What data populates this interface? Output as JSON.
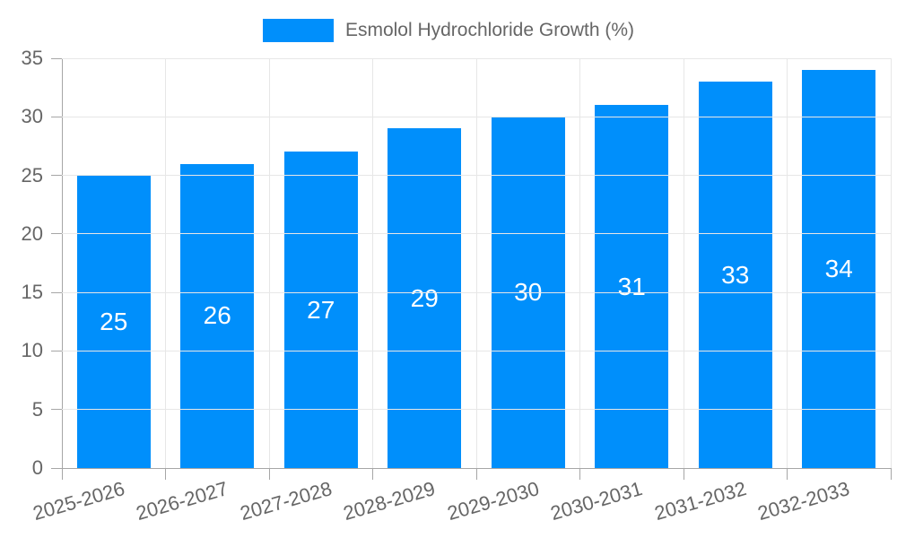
{
  "chart_data": {
    "type": "bar",
    "title": "",
    "legend_label": "Esmolol Hydrochloride Growth (%)",
    "legend_position": "top",
    "categories": [
      "2025-2026",
      "2026-2027",
      "2027-2028",
      "2028-2029",
      "2029-2030",
      "2030-2031",
      "2031-2032",
      "2032-2033"
    ],
    "values": [
      25,
      26,
      27,
      29,
      30,
      31,
      33,
      34
    ],
    "xlabel": "",
    "ylabel": "",
    "ylim": [
      0,
      35
    ],
    "yticks": [
      0,
      5,
      10,
      15,
      20,
      25,
      30,
      35
    ],
    "grid": "horizontal and vertical gridlines on",
    "x_label_rotation_deg": -16,
    "colors": {
      "bar": "#008FFB",
      "bar_value_text": "#ffffff",
      "axis_text": "#666666",
      "legend_text": "#666666",
      "gridline": "#e7e7e7",
      "axis_line": "#a6a6a6"
    }
  }
}
